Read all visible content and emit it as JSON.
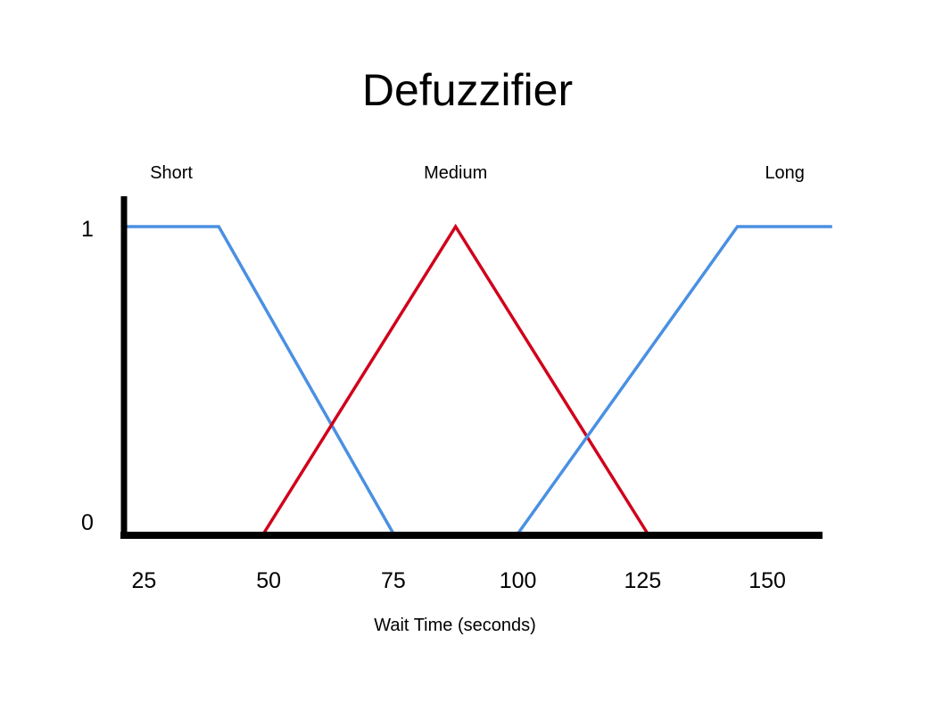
{
  "chart_data": {
    "type": "line",
    "title": "Defuzzifier",
    "xlabel": "Wait Time (seconds)",
    "ylabel": "",
    "xlim": [
      20,
      165
    ],
    "ylim": [
      0,
      1
    ],
    "x_ticks": [
      25,
      50,
      75,
      100,
      125,
      150
    ],
    "y_ticks": [
      0,
      1
    ],
    "grid": false,
    "legend": "none",
    "series": [
      {
        "name": "Short",
        "color": "#4a90e2",
        "points": [
          [
            21,
            1
          ],
          [
            40,
            1
          ],
          [
            75,
            0
          ]
        ]
      },
      {
        "name": "Medium",
        "color": "#d0021b",
        "points": [
          [
            49,
            0
          ],
          [
            87.5,
            1
          ],
          [
            126,
            0
          ]
        ]
      },
      {
        "name": "Long",
        "color": "#4a90e2",
        "points": [
          [
            100,
            0
          ],
          [
            144,
            1
          ],
          [
            163,
            1
          ]
        ]
      }
    ]
  }
}
